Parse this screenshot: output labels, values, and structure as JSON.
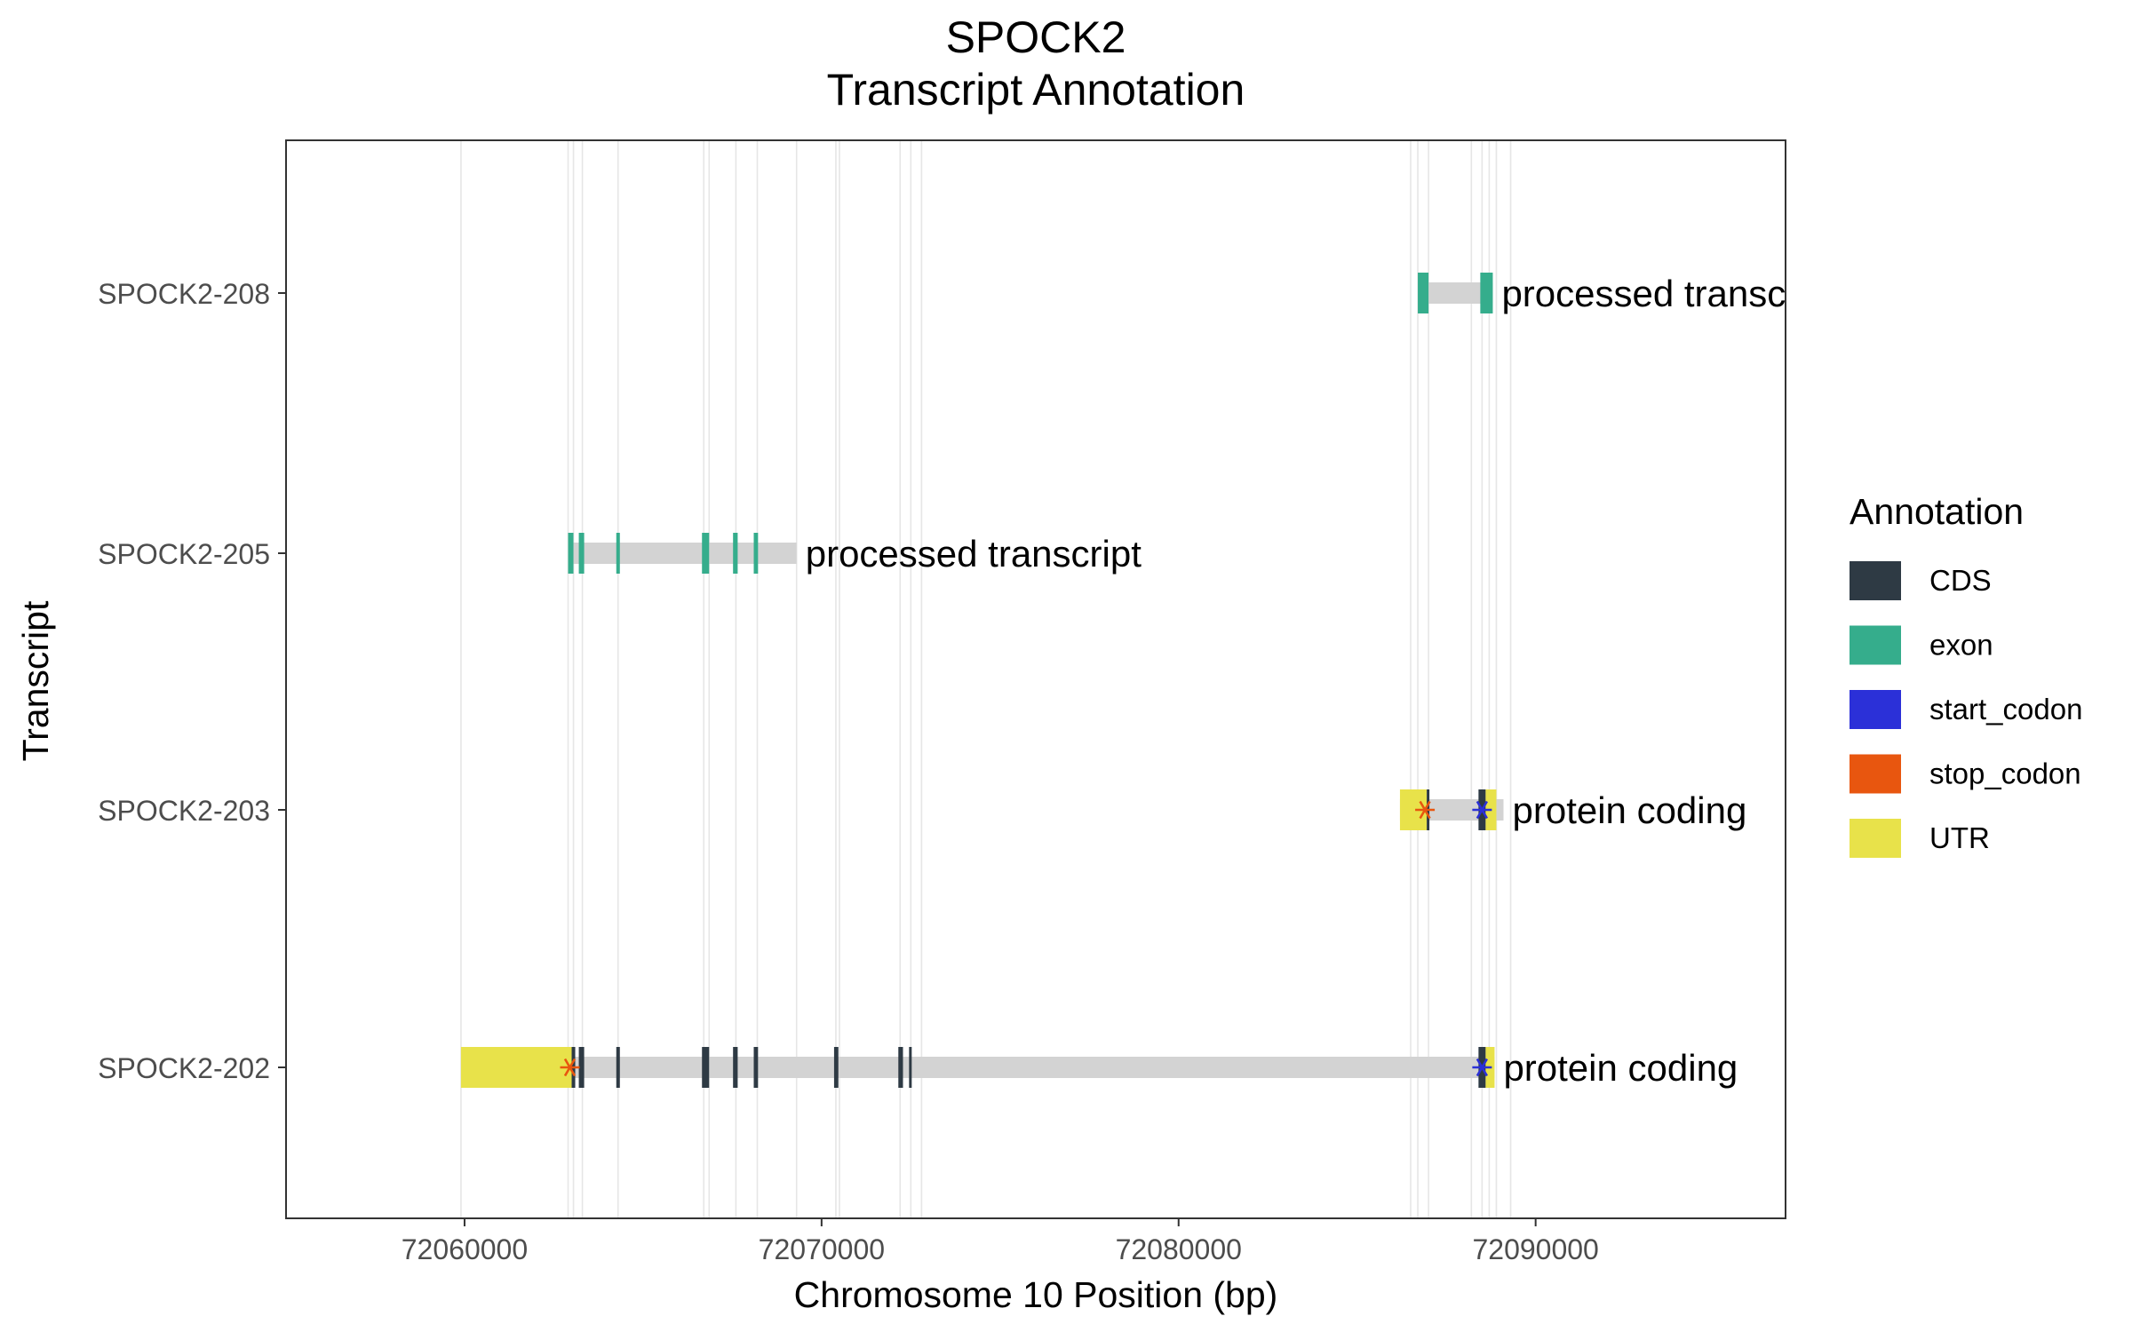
{
  "chart_data": {
    "type": "gene-track",
    "title": "SPOCK2",
    "subtitle": "Transcript Annotation",
    "xlabel": "Chromosome 10 Position (bp)",
    "ylabel": "Transcript",
    "xlim": [
      72055000,
      72097000
    ],
    "xticks": [
      72060000,
      72070000,
      72080000,
      72090000
    ],
    "xtick_labels": [
      "72060000",
      "72070000",
      "72080000",
      "72090000"
    ],
    "grid": true,
    "legend_position": "right",
    "legend": {
      "title": "Annotation",
      "items": [
        {
          "label": "CDS",
          "color": "#2e3a44"
        },
        {
          "label": "exon",
          "color": "#35ad8c"
        },
        {
          "label": "start_codon",
          "color": "#2b30d8"
        },
        {
          "label": "stop_codon",
          "color": "#e8560f"
        },
        {
          "label": "UTR",
          "color": "#e8e24a"
        }
      ]
    },
    "intron_color": "#d3d3d3",
    "gridline_positions": [
      72059900,
      72062900,
      72063050,
      72063300,
      72064300,
      72066700,
      72066850,
      72067600,
      72068200,
      72069300,
      72070400,
      72070500,
      72072200,
      72072500,
      72072800,
      72086500,
      72086700,
      72087000,
      72088200,
      72088500,
      72088700,
      72088900,
      72089300
    ],
    "transcripts": [
      {
        "name": "SPOCK2-208",
        "biotype": "processed transcrip",
        "start": 72086700,
        "end": 72088800,
        "features": [
          {
            "type": "exon",
            "start": 72086700,
            "end": 72087000
          },
          {
            "type": "exon",
            "start": 72088450,
            "end": 72088800
          }
        ],
        "codons": []
      },
      {
        "name": "SPOCK2-205",
        "biotype": "processed transcript",
        "start": 72062900,
        "end": 72069300,
        "features": [
          {
            "type": "exon",
            "start": 72062900,
            "end": 72063050
          },
          {
            "type": "exon",
            "start": 72063200,
            "end": 72063350
          },
          {
            "type": "exon",
            "start": 72064250,
            "end": 72064350
          },
          {
            "type": "exon",
            "start": 72066650,
            "end": 72066850
          },
          {
            "type": "exon",
            "start": 72067520,
            "end": 72067650
          },
          {
            "type": "exon",
            "start": 72068100,
            "end": 72068220
          }
        ],
        "codons": []
      },
      {
        "name": "SPOCK2-203",
        "biotype": "protein coding",
        "start": 72086200,
        "end": 72089100,
        "features": [
          {
            "type": "UTR",
            "start": 72086200,
            "end": 72086950
          },
          {
            "type": "CDS",
            "start": 72086950,
            "end": 72087000
          },
          {
            "type": "CDS",
            "start": 72088400,
            "end": 72088600
          },
          {
            "type": "UTR",
            "start": 72088600,
            "end": 72088900
          }
        ],
        "codons": [
          {
            "type": "stop_codon",
            "position": 72086900
          },
          {
            "type": "start_codon",
            "position": 72088500
          }
        ]
      },
      {
        "name": "SPOCK2-202",
        "biotype": "protein coding",
        "start": 72059900,
        "end": 72088850,
        "features": [
          {
            "type": "UTR",
            "start": 72059900,
            "end": 72063000
          },
          {
            "type": "CDS",
            "start": 72063000,
            "end": 72063100
          },
          {
            "type": "CDS",
            "start": 72063200,
            "end": 72063350
          },
          {
            "type": "CDS",
            "start": 72064250,
            "end": 72064350
          },
          {
            "type": "CDS",
            "start": 72066650,
            "end": 72066850
          },
          {
            "type": "CDS",
            "start": 72067520,
            "end": 72067650
          },
          {
            "type": "CDS",
            "start": 72068100,
            "end": 72068220
          },
          {
            "type": "CDS",
            "start": 72070350,
            "end": 72070470
          },
          {
            "type": "CDS",
            "start": 72072150,
            "end": 72072280
          },
          {
            "type": "CDS",
            "start": 72072450,
            "end": 72072520
          },
          {
            "type": "CDS",
            "start": 72088400,
            "end": 72088600
          },
          {
            "type": "UTR",
            "start": 72088600,
            "end": 72088850
          }
        ],
        "codons": [
          {
            "type": "stop_codon",
            "position": 72062950
          },
          {
            "type": "start_codon",
            "position": 72088500
          }
        ]
      }
    ]
  }
}
